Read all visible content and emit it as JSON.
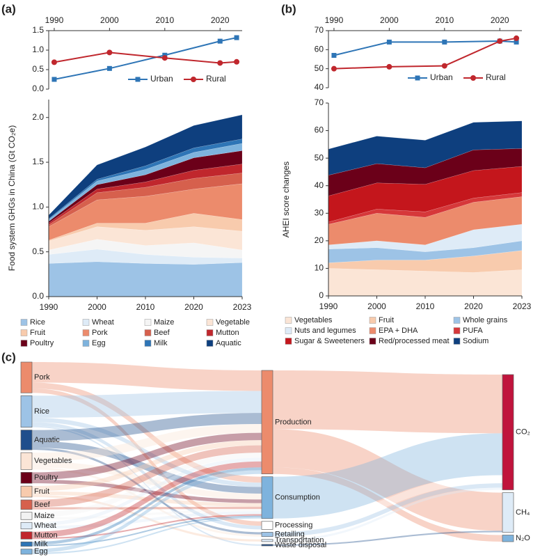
{
  "chart_data": [
    {
      "type": "line",
      "panel_label": "(a)",
      "x": [
        1990,
        2000,
        2010,
        2020,
        2023
      ],
      "xlim": [
        1989,
        2024
      ],
      "xticks": [
        1990,
        2000,
        2010,
        2020
      ],
      "ylim": [
        0,
        1.5
      ],
      "yticks": [
        {
          "value": 0,
          "label": "0.0"
        },
        {
          "value": 0.5,
          "label": "0.5"
        },
        {
          "value": 1,
          "label": "1.0"
        },
        {
          "value": 1.5,
          "label": "1.5"
        }
      ],
      "legend": "bottom-right",
      "series": [
        {
          "name": "Urban",
          "color": "#2e75b6",
          "marker": "square",
          "values": [
            0.25,
            0.53,
            0.87,
            1.23,
            1.32
          ]
        },
        {
          "name": "Rural",
          "color": "#c0272d",
          "marker": "circle",
          "values": [
            0.69,
            0.94,
            0.8,
            0.67,
            0.7
          ]
        }
      ]
    },
    {
      "type": "area",
      "y_label": "Food system GHGs in China (Gt CO₂e)",
      "categories": [
        "1990",
        "2000",
        "2010",
        "2020",
        "2023"
      ],
      "ylim": [
        0,
        2.2
      ],
      "yticks": [
        {
          "value": 0,
          "label": "0.0"
        },
        {
          "value": 0.5,
          "label": "0.5"
        },
        {
          "value": 1,
          "label": "1.0"
        },
        {
          "value": 1.5,
          "label": "1.5"
        },
        {
          "value": 2,
          "label": "2.0"
        }
      ],
      "series": [
        {
          "name": "Rice",
          "color": "#9dc3e6",
          "values": [
            0.37,
            0.39,
            0.37,
            0.36,
            0.38
          ]
        },
        {
          "name": "Wheat",
          "color": "#deebf7",
          "values": [
            0.1,
            0.14,
            0.1,
            0.08,
            0.05
          ]
        },
        {
          "name": "Maize",
          "color": "#f5f5f5",
          "values": [
            0.05,
            0.11,
            0.1,
            0.16,
            0.09
          ]
        },
        {
          "name": "Vegetable",
          "color": "#fbe5d6",
          "values": [
            0.1,
            0.14,
            0.17,
            0.18,
            0.21
          ]
        },
        {
          "name": "Fruit",
          "color": "#f8cbad",
          "values": [
            0.01,
            0.04,
            0.08,
            0.15,
            0.13
          ]
        },
        {
          "name": "Pork",
          "color": "#ec8b6c",
          "values": [
            0.15,
            0.26,
            0.3,
            0.27,
            0.4
          ]
        },
        {
          "name": "Beef",
          "color": "#d6604d",
          "values": [
            0.02,
            0.08,
            0.1,
            0.12,
            0.12
          ]
        },
        {
          "name": "Mutton",
          "color": "#c0272d",
          "values": [
            0.02,
            0.04,
            0.06,
            0.09,
            0.1
          ]
        },
        {
          "name": "Poultry",
          "color": "#6b0019",
          "values": [
            0.02,
            0.05,
            0.08,
            0.14,
            0.15
          ]
        },
        {
          "name": "Egg",
          "color": "#7eb3dd",
          "values": [
            0.02,
            0.04,
            0.06,
            0.06,
            0.08
          ]
        },
        {
          "name": "Milk",
          "color": "#2e75b6",
          "values": [
            0.01,
            0.02,
            0.04,
            0.05,
            0.05
          ]
        },
        {
          "name": "Aquatic",
          "color": "#0e3f7e",
          "values": [
            0.04,
            0.16,
            0.21,
            0.25,
            0.27
          ]
        }
      ]
    },
    {
      "type": "line",
      "panel_label": "(b)",
      "x": [
        1990,
        2000,
        2010,
        2020,
        2023
      ],
      "xlim": [
        1989,
        2024
      ],
      "xticks": [
        1990,
        2000,
        2010,
        2020
      ],
      "ylim": [
        40,
        70
      ],
      "yticks": [
        40,
        50,
        60,
        70
      ],
      "legend": "bottom-right",
      "series": [
        {
          "name": "Urban",
          "color": "#2e75b6",
          "marker": "square",
          "values": [
            57,
            64,
            64,
            64.5,
            64
          ]
        },
        {
          "name": "Rural",
          "color": "#c0272d",
          "marker": "circle",
          "values": [
            50,
            51,
            51.5,
            64.5,
            66
          ]
        }
      ]
    },
    {
      "type": "area",
      "y_label": "AHEI score changes",
      "categories": [
        "1990",
        "2000",
        "2010",
        "2020",
        "2023"
      ],
      "ylim": [
        0,
        70
      ],
      "yticks": [
        0,
        10,
        20,
        30,
        40,
        50,
        60,
        70
      ],
      "series": [
        {
          "name": "Vegetables",
          "color": "#fbe5d6",
          "values": [
            10,
            9.5,
            9,
            8.5,
            9.5
          ]
        },
        {
          "name": "Fruit",
          "color": "#f8cbad",
          "values": [
            2,
            3.5,
            4,
            6,
            7
          ]
        },
        {
          "name": "Whole grains",
          "color": "#9dc3e6",
          "values": [
            5,
            4.5,
            3,
            3,
            3.5
          ]
        },
        {
          "name": "Nuts and legumes",
          "color": "#deebf7",
          "values": [
            1.5,
            2.5,
            2.5,
            6.5,
            6
          ]
        },
        {
          "name": "EPA + DHA",
          "color": "#ec8b6c",
          "values": [
            7.5,
            10,
            10,
            10,
            10
          ]
        },
        {
          "name": "PUFA",
          "color": "#d6383a",
          "values": [
            0.8,
            1.5,
            2,
            1.5,
            1.5
          ]
        },
        {
          "name": "Sugar & Sweeteners",
          "color": "#c4161c",
          "values": [
            9.5,
            9.5,
            10,
            10,
            9.5
          ]
        },
        {
          "name": "Red/processed meat",
          "color": "#6b0019",
          "values": [
            7.5,
            7,
            6,
            7.5,
            6.5
          ]
        },
        {
          "name": "Sodium",
          "color": "#0e3f7e",
          "values": [
            9.5,
            10,
            10,
            10,
            10
          ]
        }
      ]
    },
    {
      "type": "sankey",
      "panel_label": "(c)",
      "nodes": [
        {
          "name": "Pork",
          "color": "#ec8b6c"
        },
        {
          "name": "Rice",
          "color": "#9dc3e6"
        },
        {
          "name": "Aquatic",
          "color": "#1f4e8c"
        },
        {
          "name": "Vegetables",
          "color": "#fbe5d6"
        },
        {
          "name": "Poultry",
          "color": "#6b0019"
        },
        {
          "name": "Fruit",
          "color": "#f8cbad"
        },
        {
          "name": "Beef",
          "color": "#d6604d"
        },
        {
          "name": "Maize",
          "color": "#f2f2f2"
        },
        {
          "name": "Wheat",
          "color": "#deebf7"
        },
        {
          "name": "Mutton",
          "color": "#c0272d"
        },
        {
          "name": "Milk",
          "color": "#2e75b6"
        },
        {
          "name": "Egg",
          "color": "#7eb3dd"
        },
        {
          "name": "Production",
          "color": "#ec8b6c"
        },
        {
          "name": "Consumption",
          "color": "#7eb3dd"
        },
        {
          "name": "Processing",
          "color": "#ffffff"
        },
        {
          "name": "Retailing",
          "color": "#9dc3e6"
        },
        {
          "name": "Transportation",
          "color": "#deebf7"
        },
        {
          "name": "Waste disposal",
          "color": "#1f4e8c"
        },
        {
          "name": "CO₂",
          "color": "#c0143c"
        },
        {
          "name": "CH₄",
          "color": "#deebf7"
        },
        {
          "name": "N₂O",
          "color": "#7eb3dd"
        }
      ],
      "links": [
        {
          "source": 0,
          "target": 12,
          "value": 0.28
        },
        {
          "source": 0,
          "target": 13,
          "value": 0.08
        },
        {
          "source": 0,
          "target": 14,
          "value": 0.06
        },
        {
          "source": 1,
          "target": 12,
          "value": 0.3
        },
        {
          "source": 1,
          "target": 13,
          "value": 0.06
        },
        {
          "source": 1,
          "target": 14,
          "value": 0.05
        },
        {
          "source": 1,
          "target": 17,
          "value": 0.02
        },
        {
          "source": 2,
          "target": 12,
          "value": 0.15
        },
        {
          "source": 2,
          "target": 13,
          "value": 0.09
        },
        {
          "source": 2,
          "target": 15,
          "value": 0.03
        },
        {
          "source": 3,
          "target": 12,
          "value": 0.12
        },
        {
          "source": 3,
          "target": 13,
          "value": 0.08
        },
        {
          "source": 3,
          "target": 15,
          "value": 0.03
        },
        {
          "source": 4,
          "target": 12,
          "value": 0.1
        },
        {
          "source": 4,
          "target": 13,
          "value": 0.05
        },
        {
          "source": 5,
          "target": 12,
          "value": 0.07
        },
        {
          "source": 5,
          "target": 13,
          "value": 0.05
        },
        {
          "source": 5,
          "target": 16,
          "value": 0.03
        },
        {
          "source": 6,
          "target": 12,
          "value": 0.1
        },
        {
          "source": 6,
          "target": 13,
          "value": 0.03
        },
        {
          "source": 7,
          "target": 12,
          "value": 0.07
        },
        {
          "source": 7,
          "target": 13,
          "value": 0.03
        },
        {
          "source": 8,
          "target": 12,
          "value": 0.05
        },
        {
          "source": 8,
          "target": 13,
          "value": 0.04
        },
        {
          "source": 9,
          "target": 12,
          "value": 0.08
        },
        {
          "source": 9,
          "target": 13,
          "value": 0.02
        },
        {
          "source": 10,
          "target": 12,
          "value": 0.04
        },
        {
          "source": 10,
          "target": 13,
          "value": 0.02
        },
        {
          "source": 11,
          "target": 12,
          "value": 0.05
        },
        {
          "source": 11,
          "target": 13,
          "value": 0.02
        },
        {
          "source": 12,
          "target": 18,
          "value": 0.8
        },
        {
          "source": 12,
          "target": 19,
          "value": 0.52
        },
        {
          "source": 12,
          "target": 20,
          "value": 0.09
        },
        {
          "source": 13,
          "target": 18,
          "value": 0.57
        },
        {
          "source": 14,
          "target": 18,
          "value": 0.11
        },
        {
          "source": 15,
          "target": 18,
          "value": 0.06
        },
        {
          "source": 16,
          "target": 18,
          "value": 0.03
        },
        {
          "source": 17,
          "target": 19,
          "value": 0.02
        }
      ]
    }
  ]
}
